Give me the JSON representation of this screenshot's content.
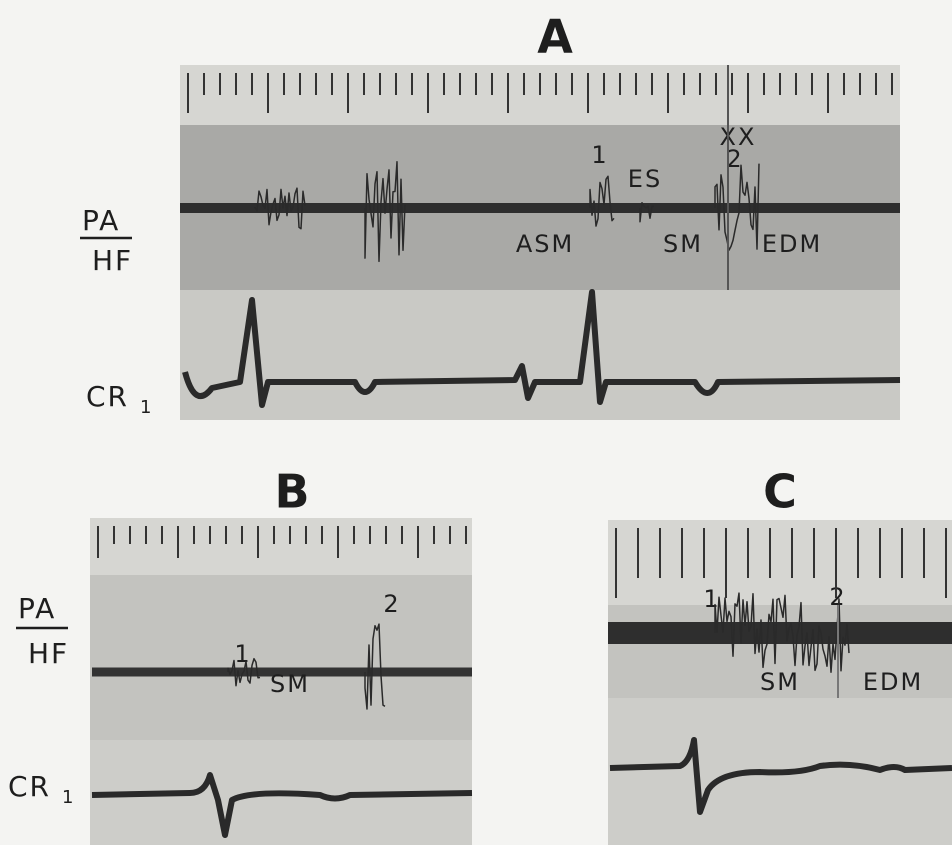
{
  "panels": [
    {
      "label": "A",
      "side_labels": {
        "top": "PA",
        "bottom": "HF",
        "lead": "CR",
        "lead_subscript": "1"
      },
      "annotations": [
        "XX",
        "1",
        "ES",
        "2",
        "ASM",
        "SM",
        "EDM"
      ]
    },
    {
      "label": "B",
      "side_labels": {
        "top": "PA",
        "bottom": "HF",
        "lead": "CR",
        "lead_subscript": "1"
      },
      "annotations": [
        "1",
        "2",
        "SM"
      ]
    },
    {
      "label": "C",
      "annotations": [
        "1",
        "2",
        "SM",
        "EDM"
      ]
    }
  ]
}
